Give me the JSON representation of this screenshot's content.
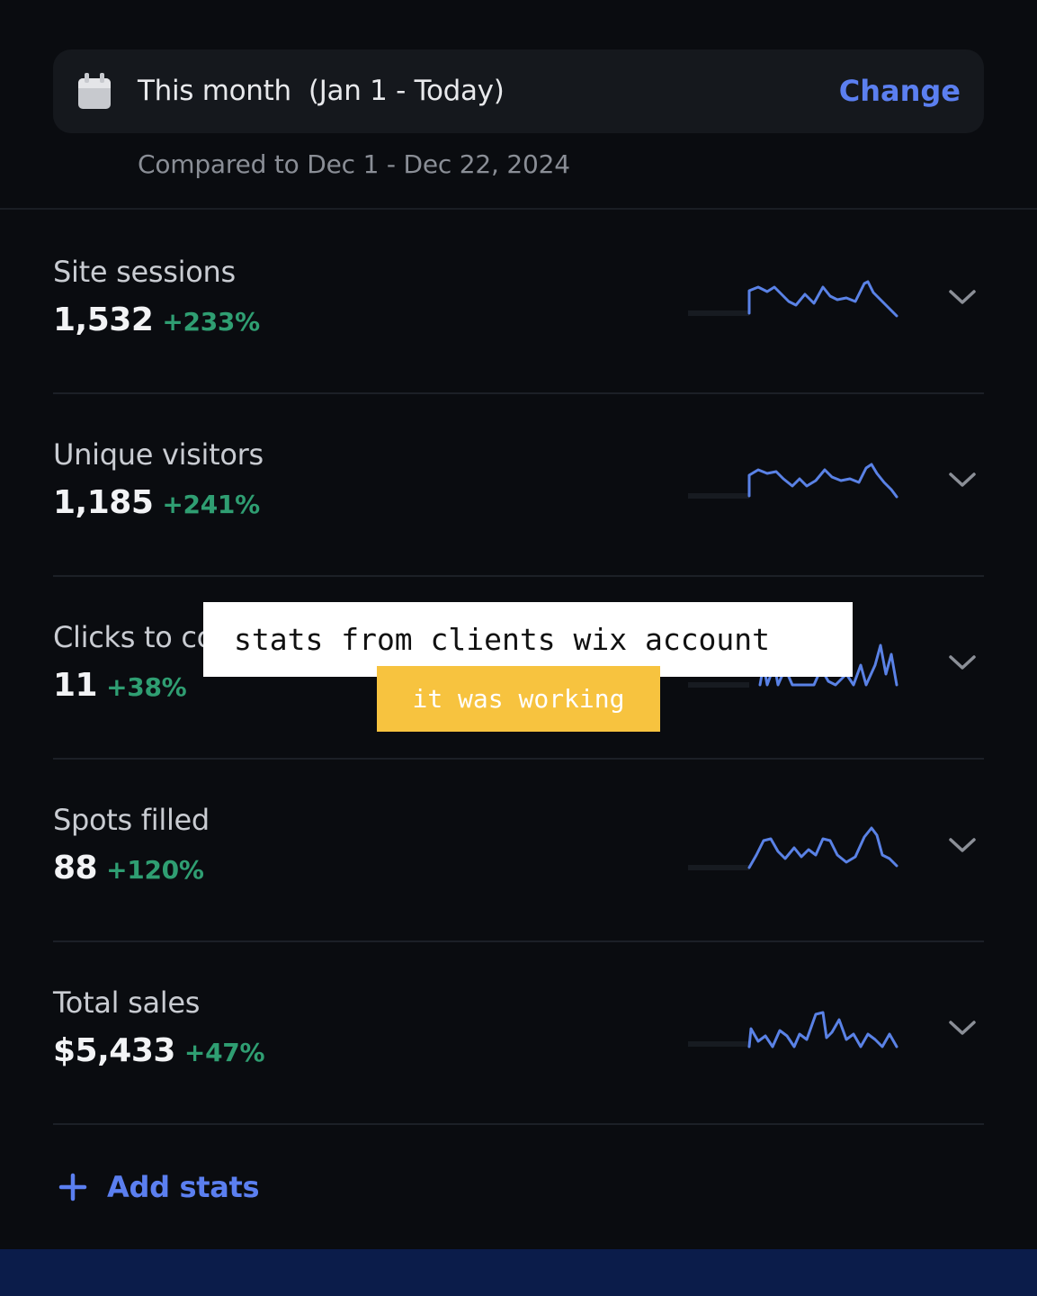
{
  "date_range": {
    "label": "This month  (Jan 1 - Today)",
    "change_label": "Change",
    "compared": "Compared to Dec 1 - Dec 22, 2024",
    "icon": "calendar-icon"
  },
  "stats": [
    {
      "label": "Site sessions",
      "value": "1,532",
      "change": "+233%"
    },
    {
      "label": "Unique visitors",
      "value": "1,185",
      "change": "+241%"
    },
    {
      "label": "Clicks to contact",
      "value": "11",
      "change": "+38%"
    },
    {
      "label": "Spots filled",
      "value": "88",
      "change": "+120%"
    },
    {
      "label": "Total sales",
      "value": "$5,433",
      "change": "+47%"
    }
  ],
  "add_stats_label": "Add stats",
  "overlay": {
    "caption": "stats from clients wix account",
    "subcaption": "it was working"
  },
  "colors": {
    "accent": "#5b7ff0",
    "positive": "#2f9e72",
    "caption_yellow": "#f7c33f",
    "bottom_bar": "#0b1c4a"
  }
}
